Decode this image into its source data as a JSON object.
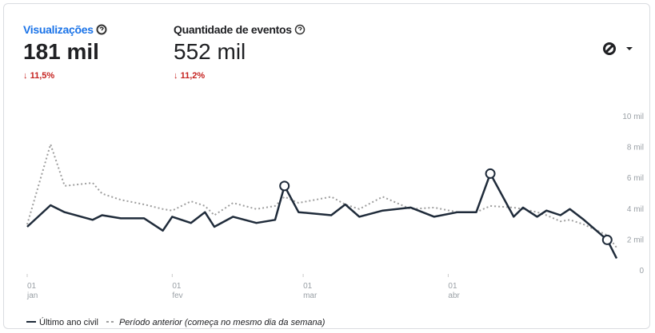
{
  "metrics": [
    {
      "label": "Visualizações",
      "value": "181 mil",
      "change": "11,5%"
    },
    {
      "label": "Quantidade de eventos",
      "value": "552 mil",
      "change": "11,2%"
    }
  ],
  "chart_data": {
    "type": "line",
    "xlim": [
      0,
      126
    ],
    "xticks": [
      {
        "value": 0,
        "label": "01",
        "sublabel": "jan"
      },
      {
        "value": 31,
        "label": "01",
        "sublabel": "fev"
      },
      {
        "value": 59,
        "label": "01",
        "sublabel": "mar"
      },
      {
        "value": 90,
        "label": "01",
        "sublabel": "abr"
      }
    ],
    "ylim": [
      0,
      10000
    ],
    "yticks": [
      {
        "value": 10000,
        "label": "10 mil"
      },
      {
        "value": 8000,
        "label": "8 mil"
      },
      {
        "value": 6000,
        "label": "6 mil"
      },
      {
        "value": 4000,
        "label": "4 mil"
      },
      {
        "value": 2000,
        "label": "2 mil"
      },
      0
    ],
    "x": [
      0,
      5,
      8,
      14,
      16,
      20,
      25,
      29,
      31,
      35,
      38,
      40,
      44,
      49,
      53,
      55,
      58,
      65,
      68,
      71,
      76,
      82,
      87,
      92,
      96,
      99,
      104,
      106,
      109,
      111,
      114,
      116,
      119,
      124,
      126
    ],
    "series": [
      {
        "name": "Período anterior (começa no mesmo dia da semana)",
        "color": "#9e9e9e",
        "dash": true,
        "values": [
          3000,
          8200,
          5500,
          5700,
          5000,
          4600,
          4300,
          4000,
          3900,
          4500,
          4200,
          3600,
          4400,
          4000,
          4200,
          4800,
          4400,
          4800,
          4300,
          4000,
          4800,
          4000,
          4100,
          3800,
          3800,
          4200,
          4100,
          4000,
          3800,
          3600,
          3200,
          3300,
          3000,
          2300,
          1500
        ]
      },
      {
        "name": "Último ano civil",
        "color": "#1f2b3a",
        "dash": false,
        "markers": [
          15,
          25,
          33
        ],
        "values": [
          2850,
          4250,
          3800,
          3300,
          3600,
          3400,
          3400,
          2600,
          3500,
          3100,
          3800,
          2850,
          3500,
          3100,
          3300,
          5500,
          3800,
          3600,
          4300,
          3500,
          3900,
          4100,
          3500,
          3800,
          3800,
          6300,
          3500,
          4100,
          3500,
          3900,
          3600,
          4000,
          3300,
          2000,
          800
        ]
      }
    ],
    "grid": false
  }
}
